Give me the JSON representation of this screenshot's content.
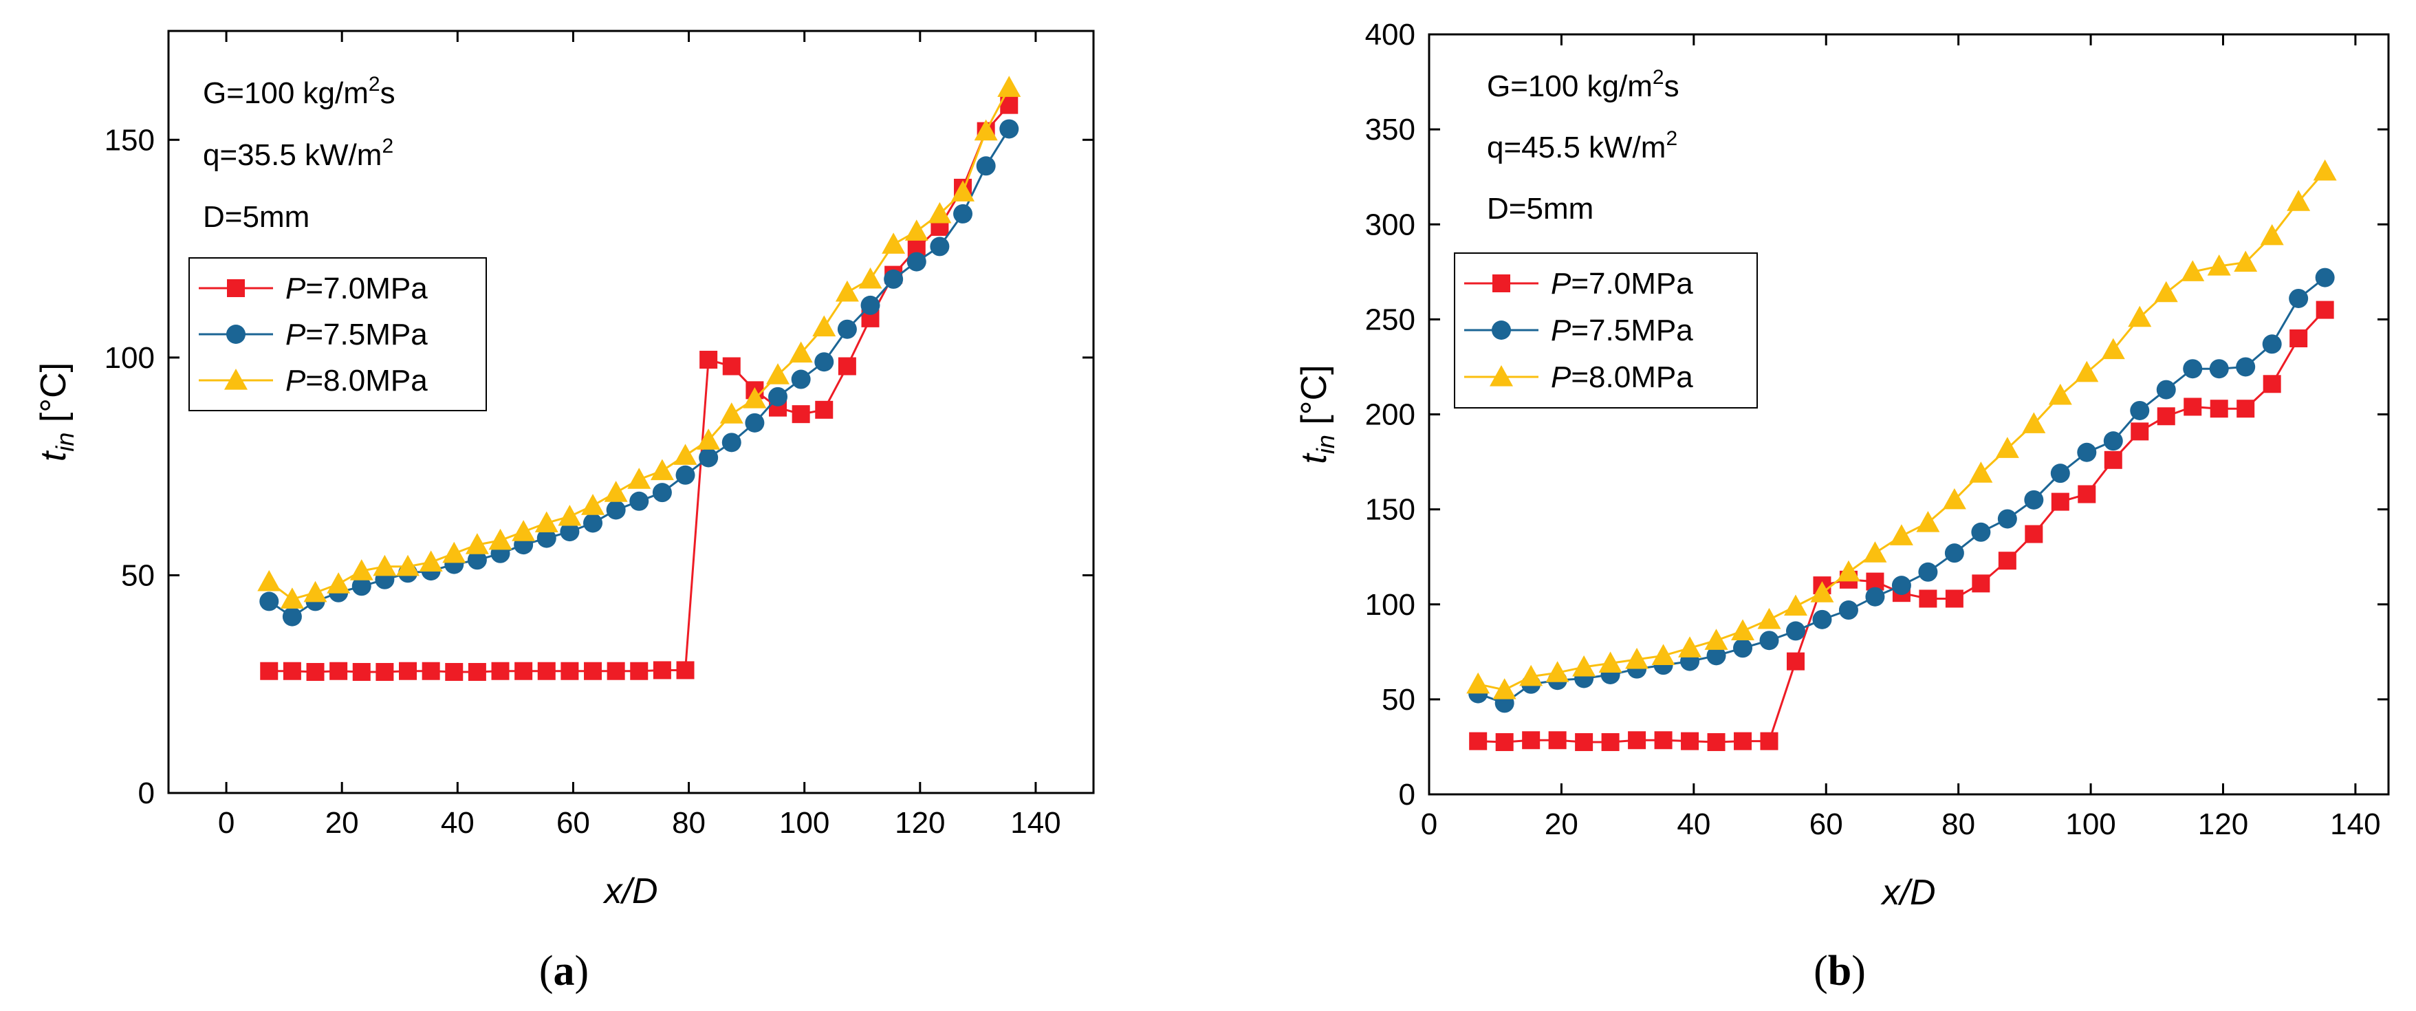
{
  "colors": {
    "p70": "#ee1c25",
    "p75": "#1b6595",
    "p80": "#fbbf0f",
    "frame": "#000000"
  },
  "chart_data": [
    {
      "type": "line",
      "panel_label": "a",
      "xlabel_var": "x",
      "xlabel_sep": "/",
      "xlabel_sub": "D",
      "ylabel_var": "t",
      "ylabel_sub": "in",
      "ylabel_unit": "[°C]",
      "xlim": [
        -10,
        150
      ],
      "ylim": [
        0,
        175
      ],
      "xticks": [
        0,
        20,
        40,
        60,
        80,
        100,
        120,
        140
      ],
      "yticks": [
        0,
        50,
        100,
        150
      ],
      "annotations": {
        "line1_main": "G=100 kg/m",
        "line1_sup": "2",
        "line1_end": "s",
        "line2_main": "q=35.5 kW/m",
        "line2_sup": "2",
        "line3": "D=5mm"
      },
      "legend_position": "left",
      "series": [
        {
          "legend_var": "P",
          "legend_rest": "=7.0MPa",
          "marker": "square",
          "color_key": "p70",
          "x": [
            7.4,
            11.4,
            15.4,
            19.4,
            23.4,
            27.4,
            31.4,
            35.4,
            39.4,
            43.4,
            47.4,
            51.4,
            55.4,
            59.4,
            63.4,
            67.4,
            71.4,
            75.4,
            79.4,
            83.4,
            87.4,
            91.4,
            95.4,
            99.4,
            103.4,
            107.4,
            111.4,
            115.4,
            119.4,
            123.4,
            127.4,
            131.4,
            135.4
          ],
          "y": [
            28,
            28,
            27.8,
            28,
            27.8,
            27.8,
            28,
            28,
            27.8,
            27.8,
            28,
            28,
            28,
            28,
            28,
            28,
            28,
            28.2,
            28.2,
            99.5,
            98,
            92.5,
            88.5,
            87,
            88,
            98,
            109,
            119,
            125,
            130,
            139,
            152,
            158
          ]
        },
        {
          "legend_var": "P",
          "legend_rest": "=7.5MPa",
          "marker": "circle",
          "color_key": "p75",
          "x": [
            7.4,
            11.4,
            15.4,
            19.4,
            23.4,
            27.4,
            31.4,
            35.4,
            39.4,
            43.4,
            47.4,
            51.4,
            55.4,
            59.4,
            63.4,
            67.4,
            71.4,
            75.4,
            79.4,
            83.4,
            87.4,
            91.4,
            95.4,
            99.4,
            103.4,
            107.4,
            111.4,
            115.4,
            119.4,
            123.4,
            127.4,
            131.4,
            135.4
          ],
          "y": [
            44,
            40.5,
            44,
            46,
            47.5,
            49,
            50.5,
            51,
            52.5,
            53.5,
            55,
            57,
            58.5,
            60,
            62,
            65,
            67,
            69,
            73,
            77,
            80.5,
            85,
            91,
            95,
            99,
            106.5,
            112,
            118,
            122,
            125.5,
            133,
            144,
            152.5
          ]
        },
        {
          "legend_var": "P",
          "legend_rest": "=8.0MPa",
          "marker": "triangle",
          "color_key": "p80",
          "x": [
            7.4,
            11.4,
            15.4,
            19.4,
            23.4,
            27.4,
            31.4,
            35.4,
            39.4,
            43.4,
            47.4,
            51.4,
            55.4,
            59.4,
            63.4,
            67.4,
            71.4,
            75.4,
            79.4,
            83.4,
            87.4,
            91.4,
            95.4,
            99.4,
            103.4,
            107.4,
            111.4,
            115.4,
            119.4,
            123.4,
            127.4,
            131.4,
            135.4
          ],
          "y": [
            48.5,
            44.5,
            46,
            48,
            51,
            52,
            52,
            53,
            55,
            57,
            58,
            60,
            62,
            63.5,
            66,
            69,
            72,
            74,
            77.5,
            81,
            87,
            90.5,
            96,
            101,
            107,
            115,
            118,
            126,
            129,
            133,
            138,
            152,
            162
          ]
        }
      ]
    },
    {
      "type": "line",
      "panel_label": "b",
      "xlabel_var": "x",
      "xlabel_sep": "/",
      "xlabel_sub": "D",
      "ylabel_var": "t",
      "ylabel_sub": "in",
      "ylabel_unit": "[°C]",
      "xlim": [
        0,
        145
      ],
      "ylim": [
        0,
        400
      ],
      "xticks": [
        0,
        20,
        40,
        60,
        80,
        100,
        120,
        140
      ],
      "yticks": [
        0,
        50,
        100,
        150,
        200,
        250,
        300,
        350,
        400
      ],
      "annotations": {
        "line1_main": "G=100 kg/m",
        "line1_sup": "2",
        "line1_end": "s",
        "line2_main": "q=45.5 kW/m",
        "line2_sup": "2",
        "line3": "D=5mm"
      },
      "legend_position": "left",
      "series": [
        {
          "legend_var": "P",
          "legend_rest": "=7.0MPa",
          "marker": "square",
          "color_key": "p70",
          "x": [
            7.4,
            11.4,
            15.4,
            19.4,
            23.4,
            27.4,
            31.4,
            35.4,
            39.4,
            43.4,
            47.4,
            51.4,
            55.4,
            59.4,
            63.4,
            67.4,
            71.4,
            75.4,
            79.4,
            83.4,
            87.4,
            91.4,
            95.4,
            99.4,
            103.4,
            107.4,
            111.4,
            115.4,
            119.4,
            123.4,
            127.4,
            131.4,
            135.4
          ],
          "y": [
            28,
            27.5,
            28.5,
            28.5,
            27.5,
            27.5,
            28.5,
            28.5,
            28,
            27.5,
            28,
            28,
            70,
            110,
            113,
            112,
            106,
            103,
            103,
            111,
            123,
            137,
            154,
            158,
            176,
            191,
            199,
            204,
            203,
            203,
            216,
            240,
            255
          ]
        },
        {
          "legend_var": "P",
          "legend_rest": "=7.5MPa",
          "marker": "circle",
          "color_key": "p75",
          "x": [
            7.4,
            11.4,
            15.4,
            19.4,
            23.4,
            27.4,
            31.4,
            35.4,
            39.4,
            43.4,
            47.4,
            51.4,
            55.4,
            59.4,
            63.4,
            67.4,
            71.4,
            75.4,
            79.4,
            83.4,
            87.4,
            91.4,
            95.4,
            99.4,
            103.4,
            107.4,
            111.4,
            115.4,
            119.4,
            123.4,
            127.4,
            131.4,
            135.4
          ],
          "y": [
            53,
            48,
            58,
            60,
            61,
            63,
            66,
            68,
            70,
            73,
            77,
            81,
            86,
            92,
            97,
            104,
            110,
            117,
            127,
            138,
            145,
            155,
            169,
            180,
            186,
            202,
            213,
            224,
            224,
            225,
            237,
            261,
            272
          ]
        },
        {
          "legend_var": "P",
          "legend_rest": "=8.0MPa",
          "marker": "triangle",
          "color_key": "p80",
          "x": [
            7.4,
            11.4,
            15.4,
            19.4,
            23.4,
            27.4,
            31.4,
            35.4,
            39.4,
            43.4,
            47.4,
            51.4,
            55.4,
            59.4,
            63.4,
            67.4,
            71.4,
            75.4,
            79.4,
            83.4,
            87.4,
            91.4,
            95.4,
            99.4,
            103.4,
            107.4,
            111.4,
            115.4,
            119.4,
            123.4,
            127.4,
            131.4,
            135.4
          ],
          "y": [
            58,
            55,
            62,
            64,
            67,
            69,
            71,
            73,
            77,
            81,
            86,
            92,
            99,
            106,
            117,
            127,
            136,
            143,
            155,
            169,
            182,
            195,
            210,
            222,
            234,
            251,
            264,
            275,
            278,
            280,
            294,
            312,
            328
          ]
        }
      ]
    }
  ]
}
